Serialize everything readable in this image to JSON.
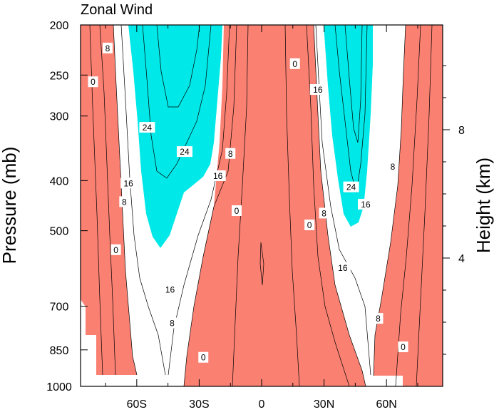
{
  "chart_data": {
    "type": "contour",
    "title": "Zonal Wind",
    "xlabel": "",
    "ylabel": "Pressure (mb)",
    "ylabel_right": "Height (km)",
    "x_ticks": [
      "60S",
      "30S",
      "0",
      "30N",
      "60N"
    ],
    "x_tick_values": [
      -60,
      -30,
      0,
      30,
      60
    ],
    "xlim": [
      -87,
      87
    ],
    "y_ticks": [
      "200",
      "250",
      "300",
      "400",
      "500",
      "700",
      "850",
      "1000"
    ],
    "y_tick_values": [
      200,
      250,
      300,
      400,
      500,
      700,
      850,
      1000
    ],
    "ylim": [
      1000,
      200
    ],
    "y_scale": "log",
    "right_ticks": [
      "8",
      "4"
    ],
    "right_tick_values": [
      8,
      4
    ],
    "fill_levels": {
      "red": "< 0 ... ",
      "white": "between contours",
      "cyan": ">= 20"
    },
    "colors": {
      "negative_fill": "#fa8072",
      "neutral_fill": "#ffffff",
      "strong_fill": "#00e8e8",
      "line": "#000000"
    },
    "contour_labels": [
      {
        "text": "8",
        "x": -74,
        "p": 222
      },
      {
        "text": "0",
        "x": -81,
        "p": 258
      },
      {
        "text": "24",
        "x": -55,
        "p": 316
      },
      {
        "text": "24",
        "x": -37,
        "p": 352
      },
      {
        "text": "8",
        "x": -15,
        "p": 355
      },
      {
        "text": "16",
        "x": -21,
        "p": 392
      },
      {
        "text": "16",
        "x": -64,
        "p": 405
      },
      {
        "text": "8",
        "x": -66,
        "p": 440
      },
      {
        "text": "0",
        "x": -12,
        "p": 458
      },
      {
        "text": "0",
        "x": -70,
        "p": 545
      },
      {
        "text": "16",
        "x": -44,
        "p": 650
      },
      {
        "text": "8",
        "x": -43,
        "p": 755
      },
      {
        "text": "0",
        "x": -28,
        "p": 880
      },
      {
        "text": "0",
        "x": 16,
        "p": 238
      },
      {
        "text": "16",
        "x": 27,
        "p": 267
      },
      {
        "text": "8",
        "x": 63,
        "p": 376
      },
      {
        "text": "24",
        "x": 43,
        "p": 412
      },
      {
        "text": "16",
        "x": 50,
        "p": 445
      },
      {
        "text": "8",
        "x": 30,
        "p": 463
      },
      {
        "text": "0",
        "x": 23,
        "p": 488
      },
      {
        "text": "16",
        "x": 39,
        "p": 590
      },
      {
        "text": "8",
        "x": 56,
        "p": 740
      },
      {
        "text": "0",
        "x": 68,
        "p": 840
      }
    ]
  }
}
